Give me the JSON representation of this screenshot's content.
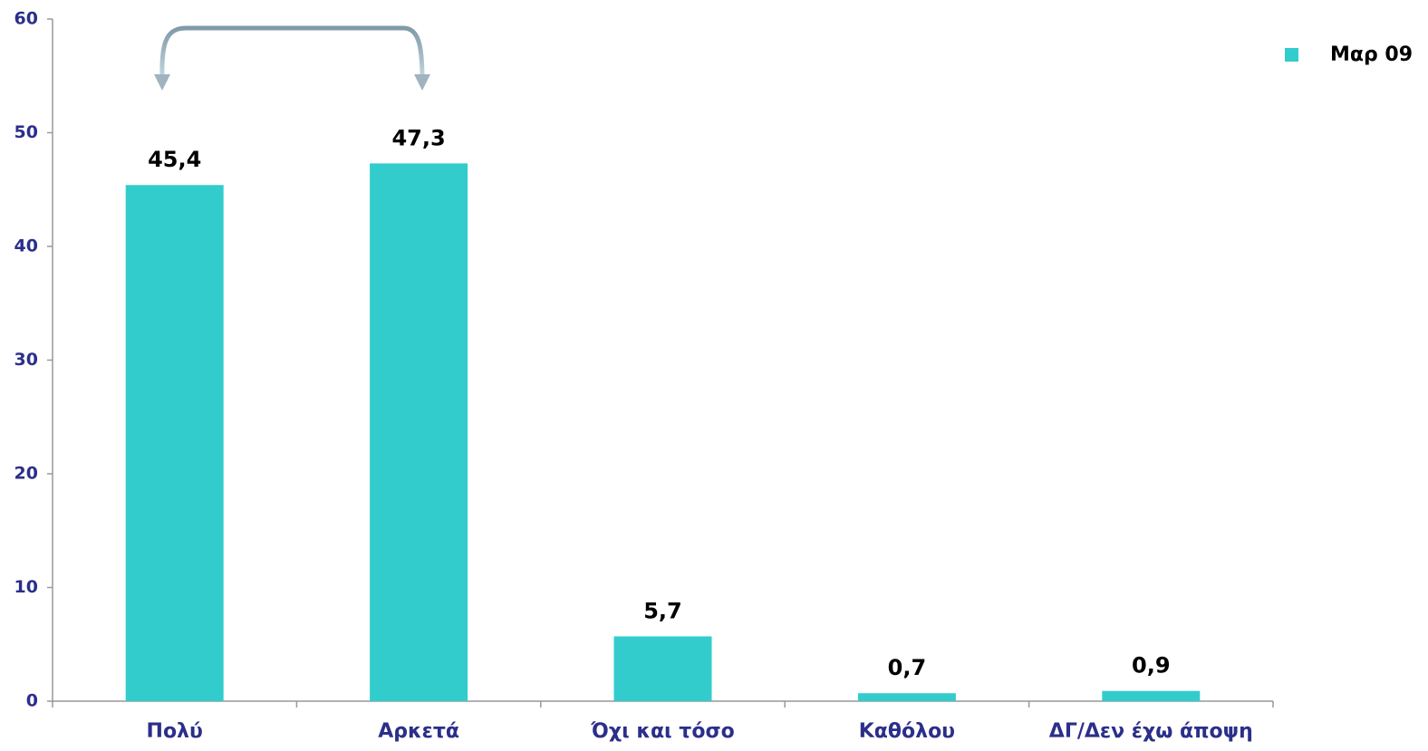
{
  "chart_data": {
    "type": "bar",
    "categories": [
      "Πολύ",
      "Αρκετά",
      "Όχι και τόσο",
      "Καθόλου",
      "ΔΓ/Δεν έχω άποψη"
    ],
    "series": [
      {
        "name": "Μαρ 09",
        "color": "#33CCCC",
        "values": [
          45.4,
          47.3,
          5.7,
          0.7,
          0.9
        ],
        "value_labels": [
          "45,4",
          "47,3",
          "5,7",
          "0,7",
          "0,9"
        ]
      }
    ],
    "ylim": [
      0,
      60
    ],
    "yticks": [
      0,
      10,
      20,
      30,
      40,
      50,
      60
    ],
    "legend": "top-right"
  }
}
